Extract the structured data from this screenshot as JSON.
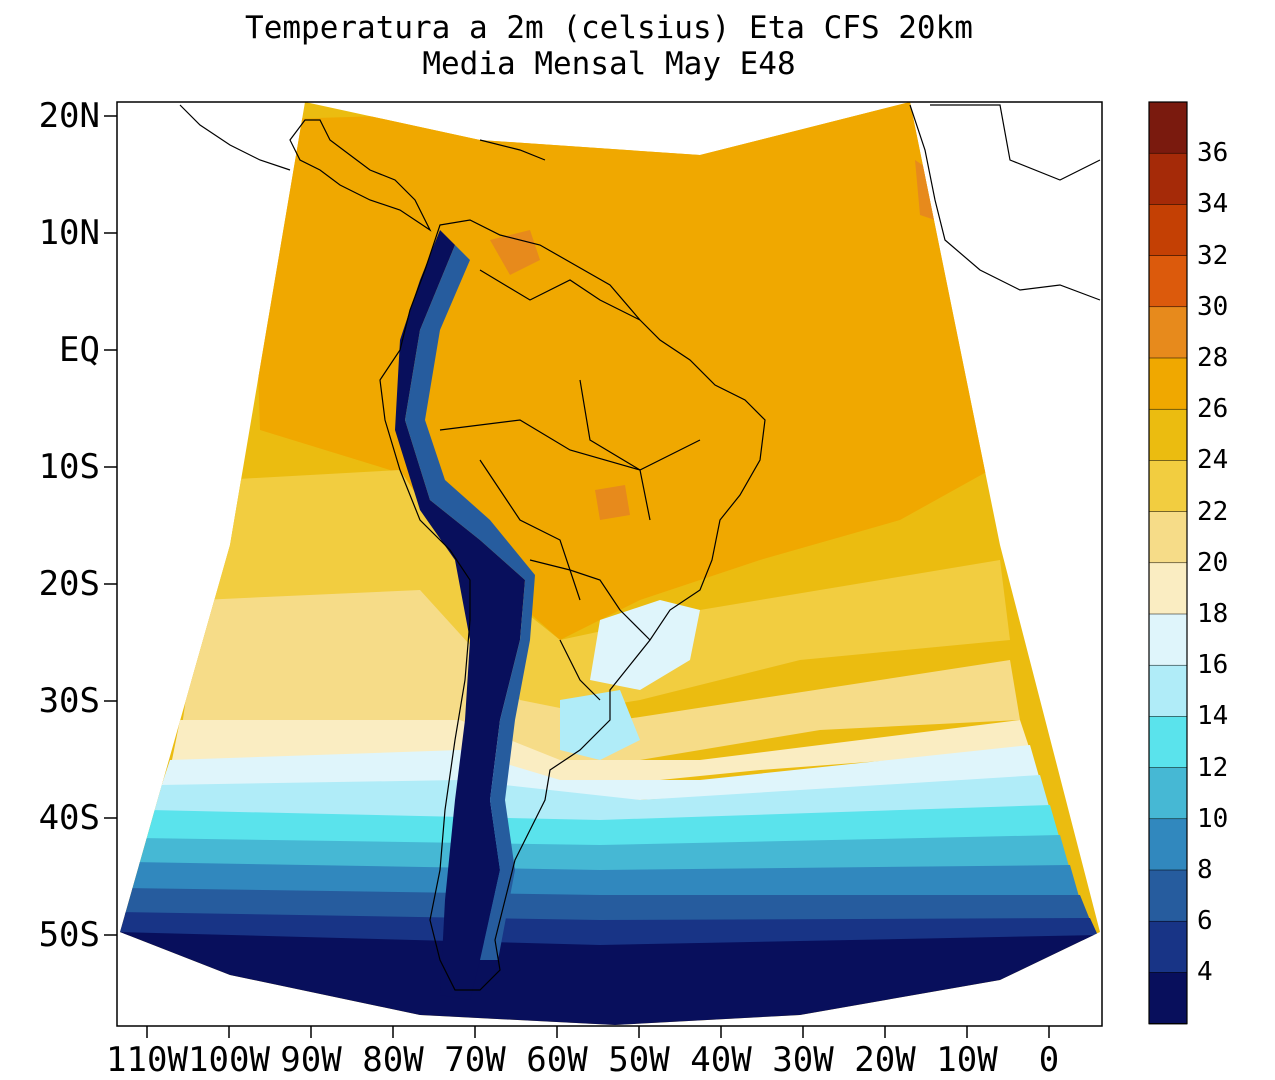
{
  "title": {
    "line1": "Temperatura a 2m (celsius) Eta CFS 20km",
    "line2": "Media Mensal May  E48"
  },
  "axes": {
    "lat_labels": [
      "20N",
      "10N",
      "EQ",
      "10S",
      "20S",
      "30S",
      "40S",
      "50S"
    ],
    "lon_labels": [
      "110W",
      "100W",
      "90W",
      "80W",
      "70W",
      "60W",
      "50W",
      "40W",
      "30W",
      "20W",
      "10W",
      "0"
    ]
  },
  "colorbar": {
    "labels": [
      "36",
      "34",
      "32",
      "30",
      "28",
      "26",
      "24",
      "22",
      "20",
      "18",
      "16",
      "14",
      "12",
      "10",
      "8",
      "6",
      "4"
    ],
    "colors": [
      "#7a1a0e",
      "#a52a08",
      "#c44004",
      "#dc5a0c",
      "#e78a1c",
      "#f0a800",
      "#ebbc10",
      "#f2cd40",
      "#f6dc88",
      "#faedc2",
      "#dff5fb",
      "#b0ecf8",
      "#5ae3ec",
      "#46b8d4",
      "#3188be",
      "#265c9e",
      "#183486",
      "#080f5c"
    ]
  },
  "map": {
    "region": "South America",
    "variable": "2m temperature",
    "units": "celsius"
  },
  "colors": {
    "warm": "#f0a800",
    "ocean_mid": "#f2cd40",
    "cold": "#080f5c",
    "frame": "#000000"
  }
}
